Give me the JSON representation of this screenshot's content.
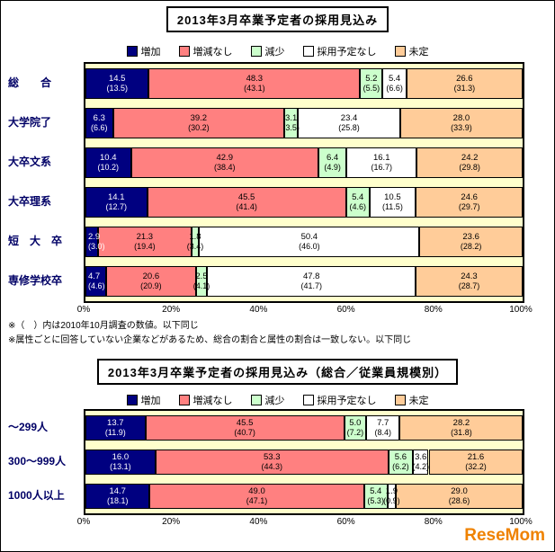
{
  "chart_data": [
    {
      "type": "bar",
      "variant": "stacked-horizontal-100",
      "title": "2013年3月卒業予定者の採用見込み",
      "unit": "%",
      "xlim": [
        0,
        100
      ],
      "x_ticks": [
        "0%",
        "20%",
        "40%",
        "60%",
        "80%",
        "100%"
      ],
      "legend": [
        "増加",
        "増減なし",
        "減少",
        "採用予定なし",
        "未定"
      ],
      "colors": [
        "#000080",
        "#FF8080",
        "#CCFFCC",
        "#FFFFFF",
        "#FFCC99"
      ],
      "plot_bg": "#FFFFCC",
      "legend_position": "top",
      "rows": [
        {
          "label": "総　　合",
          "values": [
            14.5,
            48.3,
            5.2,
            5.4,
            26.6
          ],
          "display": [
            "14.5",
            "48.3",
            "5.2",
            "5.4",
            "26.6"
          ],
          "prev": [
            "(13.5)",
            "(43.1)",
            "(5.5)",
            "(6.6)",
            "(31.3)"
          ]
        },
        {
          "label": "大学院了",
          "values": [
            6.3,
            39.2,
            3.1,
            23.4,
            28.0
          ],
          "display": [
            "6.3",
            "39.2",
            "3.1",
            "23.4",
            "28.0"
          ],
          "prev": [
            "(6.6)",
            "(30.2)",
            "(3.5)",
            "(25.8)",
            "(33.9)"
          ]
        },
        {
          "label": "大卒文系",
          "values": [
            10.4,
            42.9,
            6.4,
            16.1,
            24.2
          ],
          "display": [
            "10.4",
            "42.9",
            "6.4",
            "16.1",
            "24.2"
          ],
          "prev": [
            "(10.2)",
            "(38.4)",
            "(4.9)",
            "(16.7)",
            "(29.8)"
          ]
        },
        {
          "label": "大卒理系",
          "values": [
            14.1,
            45.5,
            5.4,
            10.5,
            24.6
          ],
          "display": [
            "14.1",
            "45.5",
            "5.4",
            "10.5",
            "24.6"
          ],
          "prev": [
            "(12.7)",
            "(41.4)",
            "(4.6)",
            "(11.5)",
            "(29.7)"
          ]
        },
        {
          "label": "短　大　卒",
          "values": [
            2.9,
            21.3,
            1.8,
            50.4,
            23.6
          ],
          "display": [
            "2.9",
            "21.3",
            "1.8",
            "50.4",
            "23.6"
          ],
          "prev": [
            "(3.0)",
            "(19.4)",
            "(3.4)",
            "(46.0)",
            "(28.2)"
          ]
        },
        {
          "label": "専修学校卒",
          "values": [
            4.7,
            20.6,
            2.5,
            47.8,
            24.3
          ],
          "display": [
            "4.7",
            "20.6",
            "2.5",
            "47.8",
            "24.3"
          ],
          "prev": [
            "(4.6)",
            "(20.9)",
            "(4.1)",
            "(41.7)",
            "(28.7)"
          ]
        }
      ]
    },
    {
      "type": "bar",
      "variant": "stacked-horizontal-100",
      "title": "2013年3月卒業予定者の採用見込み（総合／従業員規模別）",
      "unit": "%",
      "xlim": [
        0,
        100
      ],
      "x_ticks": [
        "0%",
        "20%",
        "40%",
        "60%",
        "80%",
        "100%"
      ],
      "legend": [
        "増加",
        "増減なし",
        "減少",
        "採用予定なし",
        "未定"
      ],
      "colors": [
        "#000080",
        "#FF8080",
        "#CCFFCC",
        "#FFFFFF",
        "#FFCC99"
      ],
      "plot_bg": "#FFFFCC",
      "legend_position": "top",
      "rows": [
        {
          "label": "～299人",
          "values": [
            13.7,
            45.5,
            5.0,
            7.7,
            28.2
          ],
          "display": [
            "13.7",
            "45.5",
            "5.0",
            "7.7",
            "28.2"
          ],
          "prev": [
            "(11.9)",
            "(40.7)",
            "(7.2)",
            "(8.4)",
            "(31.8)"
          ]
        },
        {
          "label": "300～999人",
          "values": [
            16.0,
            53.3,
            5.6,
            3.6,
            21.6
          ],
          "display": [
            "16.0",
            "53.3",
            "5.6",
            "3.6",
            "21.6"
          ],
          "prev": [
            "(13.1)",
            "(44.3)",
            "(6.2)",
            "(4.2)",
            "(32.2)"
          ]
        },
        {
          "label": "1000人以上",
          "values": [
            14.7,
            49.0,
            5.4,
            1.9,
            29.0
          ],
          "display": [
            "14.7",
            "49.0",
            "5.4",
            "1.9",
            "29.0"
          ],
          "prev": [
            "(18.1)",
            "(47.1)",
            "(5.3)",
            "(0.9)",
            "(28.6)"
          ]
        }
      ]
    }
  ],
  "footnotes": [
    "※（　）内は2010年10月調査の数値。以下同じ",
    "※属性ごとに回答していない企業などがあるため、総合の割合と属性の割合は一致しない。以下同じ"
  ],
  "watermark": {
    "text": "ReseMom",
    "color": "#EF8200"
  }
}
